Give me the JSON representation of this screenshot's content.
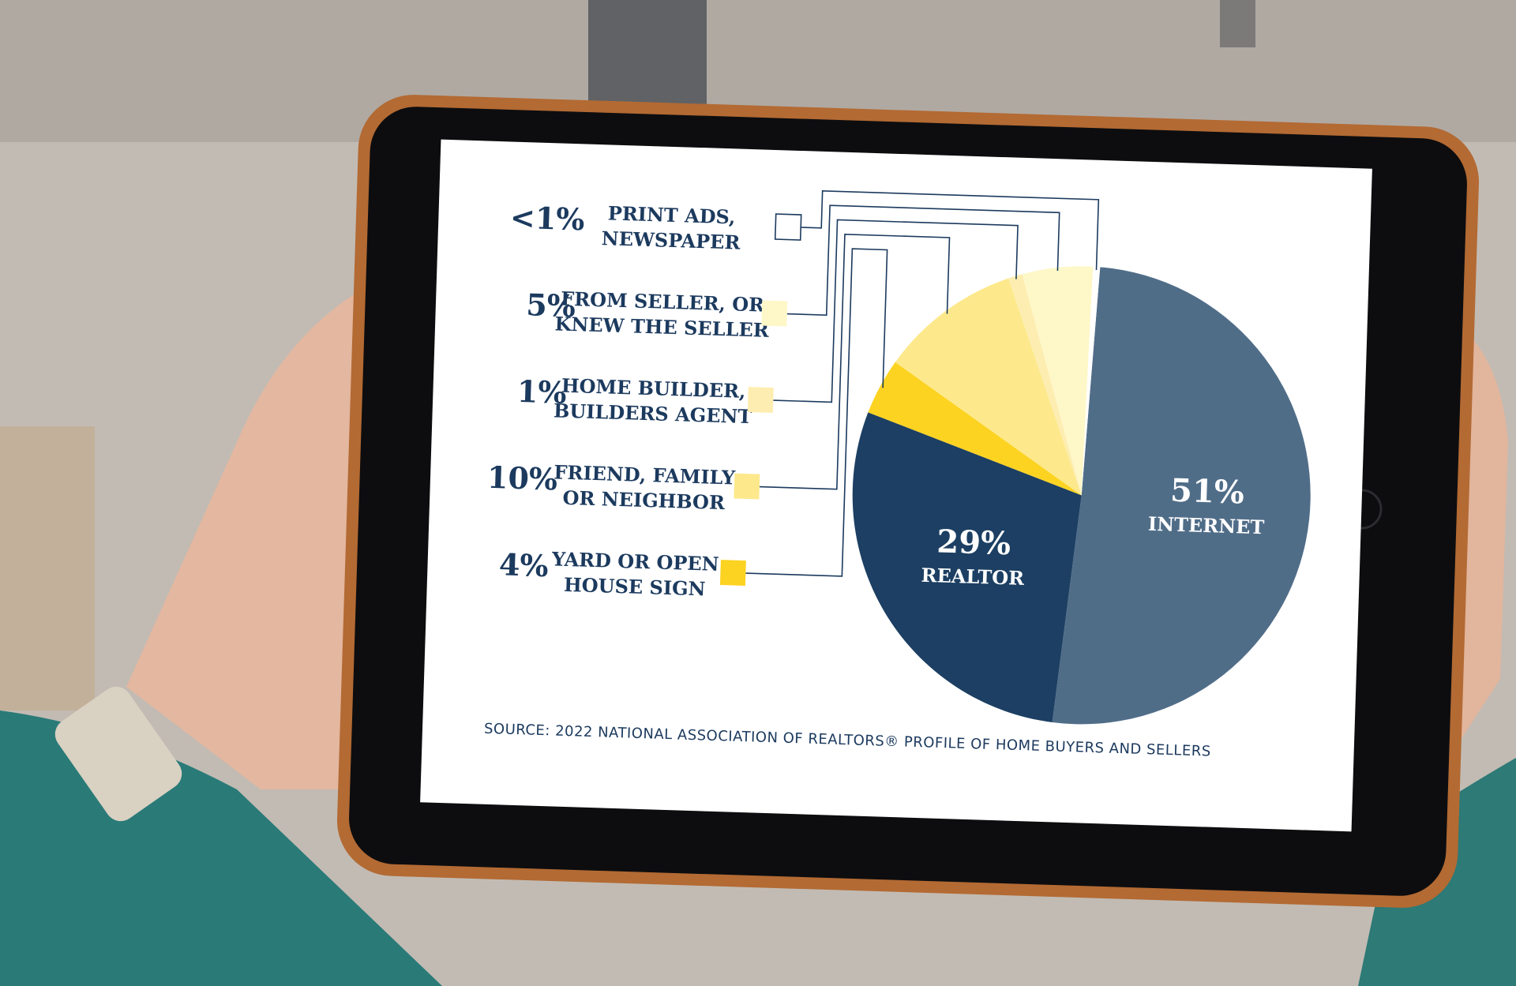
{
  "chart_data": {
    "type": "pie",
    "title": "",
    "slices": [
      {
        "label": "INTERNET",
        "value": 51,
        "pct_text": "51%",
        "color": "#506d88"
      },
      {
        "label": "REALTOR",
        "value": 29,
        "pct_text": "29%",
        "color": "#1c3f63"
      },
      {
        "label": "YARD OR OPEN HOUSE SIGN",
        "value": 4,
        "pct_text": "4%",
        "color": "#fdd322"
      },
      {
        "label": "FRIEND, FAMILY OR NEIGHBOR",
        "value": 10,
        "pct_text": "10%",
        "color": "#fde98c"
      },
      {
        "label": "HOME BUILDER, BUILDERS AGENT",
        "value": 1,
        "pct_text": "1%",
        "color": "#fdedb0"
      },
      {
        "label": "FROM SELLER, OR KNEW THE SELLER",
        "value": 5,
        "pct_text": "5%",
        "color": "#fef7c8"
      },
      {
        "label": "PRINT ADS, NEWSPAPER",
        "value": 0.5,
        "pct_text": "<1%",
        "color": "#ffffff"
      }
    ],
    "legend": [
      {
        "pct": "<1%",
        "line1": "PRINT ADS,",
        "line2": "NEWSPAPER",
        "swatch": "#ffffff"
      },
      {
        "pct": "5%",
        "line1": "FROM SELLER, OR",
        "line2": "KNEW THE SELLER",
        "swatch": "#fef7c8"
      },
      {
        "pct": "1%",
        "line1": "HOME BUILDER,",
        "line2": "BUILDERS AGENT",
        "swatch": "#fdedb0"
      },
      {
        "pct": "10%",
        "line1": "FRIEND, FAMILY",
        "line2": "OR NEIGHBOR",
        "swatch": "#fde98c"
      },
      {
        "pct": "4%",
        "line1": "YARD OR OPEN",
        "line2": "HOUSE SIGN",
        "swatch": "#fdd322"
      }
    ],
    "legend_placement": "left",
    "source": "SOURCE: 2022 NATIONAL ASSOCIATION OF REALTORS® PROFILE OF HOME BUYERS AND SELLERS"
  }
}
